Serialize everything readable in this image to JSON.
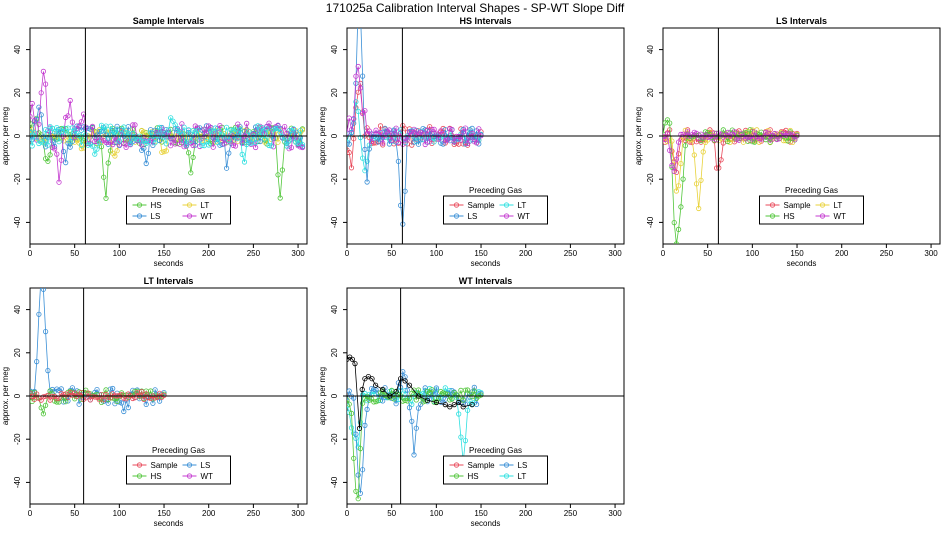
{
  "figure": {
    "title": "171025a   Calibration Interval Shapes - SP-WT Slope Diff"
  },
  "colors": {
    "Sample": "#e8495a",
    "HS": "#52c63b",
    "LS": "#3a8fd6",
    "LT": "#2ee0e0",
    "WT": "#c43bd0",
    "self": "#000000",
    "LT_yellow": "#e8d23a"
  },
  "chart_data": [
    {
      "type": "scatter",
      "title": "Sample Intervals",
      "xlabel": "seconds",
      "ylabel": "approx. per meg",
      "xlim": [
        0,
        310
      ],
      "ylim": [
        -50,
        50
      ],
      "xticks": [
        0,
        50,
        100,
        150,
        200,
        250,
        300
      ],
      "yticks": [
        -40,
        -20,
        0,
        20,
        40
      ],
      "vline": 62,
      "hline": 0,
      "legend": {
        "title": "Preceding Gas",
        "entries": [
          "HS",
          "LT",
          "LS",
          "WT"
        ],
        "position": "bottom-center"
      },
      "series": [
        {
          "name": "HS",
          "color_key": "HS",
          "x_end": 305,
          "noise": 4,
          "spikes": [
            [
              5,
              8
            ],
            [
              20,
              -14
            ],
            [
              85,
              -26
            ],
            [
              180,
              -14
            ],
            [
              280,
              -25
            ]
          ]
        },
        {
          "name": "LT",
          "color_key": "LT_yellow",
          "x_end": 305,
          "noise": 3,
          "spikes": [
            [
              60,
              -6
            ],
            [
              95,
              -12
            ],
            [
              150,
              -8
            ]
          ]
        },
        {
          "name": "LS",
          "color_key": "LS",
          "x_end": 305,
          "noise": 5,
          "spikes": [
            [
              10,
              10
            ],
            [
              40,
              -10
            ],
            [
              130,
              -12
            ],
            [
              220,
              -10
            ]
          ]
        },
        {
          "name": "WT",
          "color_key": "WT",
          "x_end": 305,
          "noise": 6,
          "spikes": [
            [
              3,
              14
            ],
            [
              15,
              33
            ],
            [
              32,
              -17
            ],
            [
              45,
              20
            ],
            [
              60,
              13
            ]
          ]
        },
        {
          "name": "LT",
          "color_key": "LT",
          "x_end": 305,
          "noise": 5,
          "spikes": [
            [
              70,
              -8
            ],
            [
              160,
              8
            ],
            [
              240,
              -10
            ]
          ]
        }
      ]
    },
    {
      "type": "scatter",
      "title": "HS Intervals",
      "xlabel": "seconds",
      "ylabel": "approx. per meg",
      "xlim": [
        0,
        310
      ],
      "ylim": [
        -50,
        50
      ],
      "xticks": [
        0,
        50,
        100,
        150,
        200,
        250,
        300
      ],
      "yticks": [
        -40,
        -20,
        0,
        20,
        40
      ],
      "vline": 62,
      "hline": 0,
      "legend": {
        "title": "Preceding Gas",
        "entries": [
          "Sample",
          "LT",
          "LS",
          "WT"
        ],
        "position": "bottom-center"
      },
      "series": [
        {
          "name": "Sample",
          "color_key": "Sample",
          "x_end": 150,
          "noise": 5,
          "spikes": [
            [
              5,
              -10
            ],
            [
              14,
              30
            ]
          ]
        },
        {
          "name": "LT",
          "color_key": "LT",
          "x_end": 150,
          "noise": 3,
          "spikes": [
            [
              10,
              15
            ],
            [
              20,
              -15
            ]
          ]
        },
        {
          "name": "LS",
          "color_key": "LS",
          "x_end": 150,
          "noise": 4,
          "spikes": [
            [
              13,
              52
            ],
            [
              16,
              30
            ],
            [
              22,
              -20
            ],
            [
              62,
              -46
            ]
          ]
        },
        {
          "name": "WT",
          "color_key": "WT",
          "x_end": 150,
          "noise": 4,
          "spikes": [
            [
              3,
              10
            ],
            [
              12,
              36
            ],
            [
              18,
              12
            ]
          ]
        }
      ]
    },
    {
      "type": "scatter",
      "title": "LS Intervals",
      "xlabel": "seconds",
      "ylabel": "approx. per meg",
      "xlim": [
        0,
        310
      ],
      "ylim": [
        -50,
        50
      ],
      "xticks": [
        0,
        50,
        100,
        150,
        200,
        250,
        300
      ],
      "yticks": [
        -40,
        -20,
        0,
        20,
        40
      ],
      "vline": 62,
      "hline": 0,
      "legend": {
        "title": "Preceding Gas",
        "entries": [
          "Sample",
          "LT",
          "HS",
          "WT"
        ],
        "position": "bottom-center"
      },
      "series": [
        {
          "name": "Sample",
          "color_key": "Sample",
          "x_end": 150,
          "noise": 3,
          "spikes": [
            [
              62,
              -18
            ],
            [
              14,
              -20
            ]
          ]
        },
        {
          "name": "LT",
          "color_key": "LT_yellow",
          "x_end": 150,
          "noise": 3,
          "spikes": [
            [
              40,
              -36
            ],
            [
              16,
              -30
            ]
          ]
        },
        {
          "name": "HS",
          "color_key": "HS",
          "x_end": 150,
          "noise": 3,
          "spikes": [
            [
              14,
              -52
            ],
            [
              20,
              -35
            ],
            [
              5,
              8
            ]
          ]
        },
        {
          "name": "WT",
          "color_key": "WT",
          "x_end": 150,
          "noise": 2,
          "spikes": [
            [
              12,
              -20
            ]
          ]
        }
      ]
    },
    {
      "type": "scatter",
      "title": "LT Intervals",
      "xlabel": "seconds",
      "ylabel": "approx. per meg",
      "xlim": [
        0,
        310
      ],
      "ylim": [
        -50,
        50
      ],
      "xticks": [
        0,
        50,
        100,
        150,
        200,
        250,
        300
      ],
      "yticks": [
        -40,
        -20,
        0,
        20,
        40
      ],
      "vline": 60,
      "hline": 0,
      "legend": {
        "title": "Preceding Gas",
        "entries": [
          "Sample",
          "LS",
          "HS",
          "WT"
        ],
        "position": "bottom-center"
      },
      "series": [
        {
          "name": "LS",
          "color_key": "LS",
          "x_end": 150,
          "noise": 4,
          "spikes": [
            [
              13,
              39
            ],
            [
              16,
              25
            ],
            [
              10,
              15
            ],
            [
              105,
              -10
            ]
          ]
        },
        {
          "name": "HS",
          "color_key": "HS",
          "x_end": 150,
          "noise": 3,
          "spikes": [
            [
              15,
              -8
            ]
          ]
        },
        {
          "name": "Sample",
          "color_key": "Sample",
          "x_end": 150,
          "noise": 2,
          "spikes": []
        }
      ]
    },
    {
      "type": "scatter",
      "title": "WT Intervals",
      "xlabel": "seconds",
      "ylabel": "approx. per meg",
      "xlim": [
        0,
        310
      ],
      "ylim": [
        -50,
        50
      ],
      "xticks": [
        0,
        50,
        100,
        150,
        200,
        250,
        300
      ],
      "yticks": [
        -40,
        -20,
        0,
        20,
        40
      ],
      "vline": 60,
      "hline": 0,
      "legend": {
        "title": "Preceding Gas",
        "entries": [
          "Sample",
          "LS",
          "HS",
          "LT"
        ],
        "position": "bottom-center"
      },
      "series": [
        {
          "name": "LT",
          "color_key": "LT",
          "x_end": 150,
          "noise": 4,
          "spikes": [
            [
              12,
              -25
            ],
            [
              130,
              -30
            ],
            [
              5,
              -12
            ]
          ]
        },
        {
          "name": "LS",
          "color_key": "LS",
          "x_end": 150,
          "noise": 4,
          "spikes": [
            [
              14,
              -42
            ],
            [
              18,
              -20
            ],
            [
              75,
              -25
            ],
            [
              62,
              10
            ]
          ]
        },
        {
          "name": "HS",
          "color_key": "HS",
          "x_end": 150,
          "noise": 3,
          "spikes": [
            [
              12,
              -48
            ],
            [
              8,
              -20
            ]
          ]
        },
        {
          "name": "self",
          "color_key": "self",
          "x_end": 140,
          "noise": 3,
          "points": [
            [
              0,
              17
            ],
            [
              3,
              18
            ],
            [
              6,
              17
            ],
            [
              9,
              15
            ],
            [
              14,
              -15
            ],
            [
              17,
              3
            ],
            [
              20,
              8
            ],
            [
              24,
              9
            ],
            [
              28,
              8
            ],
            [
              32,
              5
            ],
            [
              40,
              3
            ],
            [
              48,
              0
            ],
            [
              55,
              2
            ],
            [
              60,
              8
            ],
            [
              65,
              7
            ],
            [
              70,
              5
            ],
            [
              80,
              0
            ],
            [
              90,
              -2
            ],
            [
              100,
              -3
            ],
            [
              110,
              -4
            ],
            [
              115,
              -5
            ],
            [
              120,
              -4
            ],
            [
              125,
              -3
            ],
            [
              130,
              -5
            ],
            [
              140,
              -4
            ]
          ]
        }
      ]
    }
  ]
}
